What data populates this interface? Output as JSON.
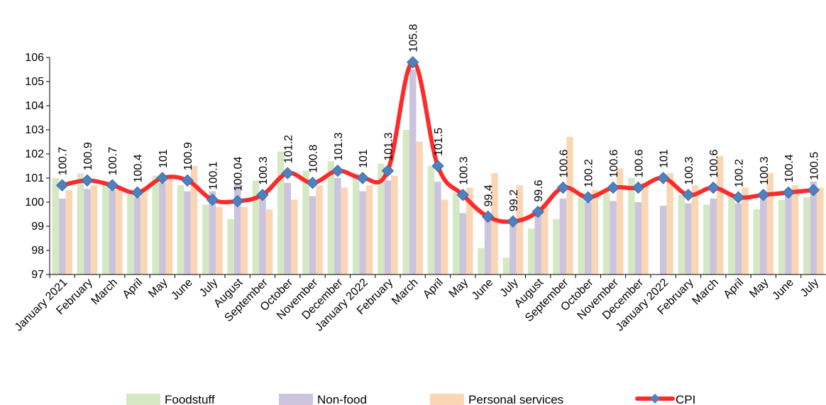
{
  "chart_data": {
    "type": "bar",
    "categories": [
      "January 2021",
      "February",
      "March",
      "April",
      "May",
      "June",
      "July",
      "August",
      "September",
      "October",
      "November",
      "December",
      "January 2022",
      "February",
      "March",
      "April",
      "May",
      "June",
      "July",
      "August",
      "September",
      "October",
      "November",
      "December",
      "January 2022",
      "February",
      "March",
      "April",
      "May",
      "June",
      "July"
    ],
    "ylim": [
      97,
      106
    ],
    "yticks": [
      "97",
      "98",
      "99",
      "100",
      "101",
      "102",
      "103",
      "104",
      "105",
      "106"
    ],
    "grid": false,
    "legend_position": "bottom",
    "series": [
      {
        "name": "Foodstuff",
        "kind": "bar",
        "color": "#d5e8c4",
        "values": [
          101.0,
          101.2,
          100.7,
          100.3,
          101.1,
          100.7,
          99.9,
          99.3,
          100.9,
          102.1,
          101.3,
          101.7,
          101.2,
          101.6,
          103.0,
          101.5,
          100.4,
          98.1,
          97.7,
          98.9,
          99.3,
          100.4,
          100.4,
          101.0,
          97.0,
          100.3,
          99.9,
          100.3,
          99.7,
          100.1,
          100.2
        ]
      },
      {
        "name": "Non-food",
        "kind": "bar",
        "color": "#ccc4dd",
        "values": [
          100.15,
          100.55,
          100.5,
          100.2,
          100.8,
          100.45,
          100.45,
          100.8,
          100.3,
          100.8,
          100.25,
          101.0,
          100.45,
          100.9,
          105.5,
          100.85,
          99.55,
          99.3,
          99.2,
          99.45,
          100.15,
          100.0,
          100.05,
          100.0,
          99.85,
          99.95,
          100.15,
          99.95,
          100.3,
          100.55,
          100.85
        ]
      },
      {
        "name": "Personal services",
        "kind": "bar",
        "color": "#fbd6b4",
        "values": [
          100.5,
          100.7,
          100.5,
          100.4,
          101.0,
          101.5,
          99.8,
          99.8,
          99.7,
          100.1,
          100.7,
          100.6,
          100.7,
          101.1,
          102.5,
          100.1,
          100.6,
          101.2,
          100.7,
          99.9,
          102.7,
          100.5,
          101.4,
          100.8,
          101.2,
          100.7,
          101.9,
          100.6,
          101.2,
          100.7,
          100.6
        ]
      },
      {
        "name": "CPI",
        "kind": "line",
        "color": "#ff2a2a",
        "marker_color": "#4f81bd",
        "values": [
          100.7,
          100.9,
          100.7,
          100.4,
          101.0,
          100.9,
          100.1,
          100.04,
          100.3,
          101.2,
          100.8,
          101.3,
          101.0,
          101.3,
          105.8,
          101.5,
          100.3,
          99.4,
          99.2,
          99.6,
          100.6,
          100.2,
          100.6,
          100.6,
          101.0,
          100.3,
          100.6,
          100.2,
          100.3,
          100.4,
          100.5
        ],
        "labels": [
          "100.7",
          "100.9",
          "100.7",
          "100.4",
          "101",
          "100.9",
          "100.1",
          "100.04",
          "100.3",
          "101.2",
          "100.8",
          "101.3",
          "101",
          "101.3",
          "105.8",
          "101.5",
          "100.3",
          "99.4",
          "99.2",
          "99.6",
          "100.6",
          "100.2",
          "100.6",
          "100.6",
          "101",
          "100.3",
          "100.6",
          "100.2",
          "100.3",
          "100.4",
          "100.5"
        ]
      }
    ]
  }
}
